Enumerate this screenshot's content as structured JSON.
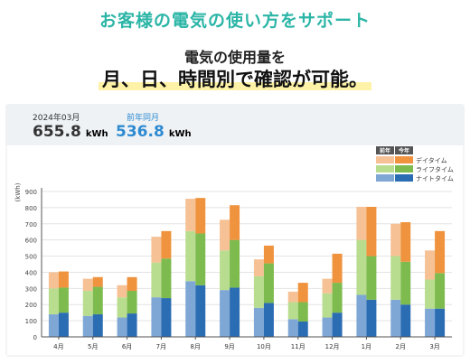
{
  "header": {
    "headline": "お客様の電気の使い方をサポート",
    "subline": "電気の使用量を",
    "mainline": "月、日、時間別で確認が可能。"
  },
  "summary": {
    "current": {
      "label": "2024年03月",
      "value": "655.8",
      "unit": "kWh"
    },
    "previous": {
      "label": "前年同月",
      "value": "536.8",
      "unit": "kWh"
    }
  },
  "chart_data": {
    "type": "bar",
    "ylabel": "(kWh)",
    "ylim": [
      0,
      900
    ],
    "yticks": [
      "0",
      "100",
      "200",
      "300",
      "400",
      "500",
      "600",
      "700",
      "800",
      "900"
    ],
    "categories": [
      "4月",
      "5月",
      "6月",
      "7月",
      "8月",
      "9月",
      "10月",
      "11月",
      "12月",
      "1月",
      "2月",
      "3月"
    ],
    "legend": {
      "headers": [
        "前年",
        "今年"
      ],
      "entries": [
        "デイタイム",
        "ライフタイム",
        "ナイトタイム"
      ]
    },
    "groups": [
      {
        "name": "前年",
        "colors": {
          "night": "#7fa7d6",
          "life": "#b9dd8e",
          "day": "#f6c195"
        }
      },
      {
        "name": "今年",
        "colors": {
          "night": "#2b6db3",
          "life": "#7dbb4e",
          "day": "#f0933e"
        }
      }
    ],
    "series": [
      {
        "name": "ナイトタイム",
        "group": "前年",
        "values": [
          140,
          130,
          120,
          245,
          345,
          290,
          180,
          110,
          120,
          260,
          230,
          175
        ]
      },
      {
        "name": "ライフタイム",
        "group": "前年",
        "values": [
          160,
          155,
          125,
          215,
          310,
          245,
          195,
          105,
          150,
          340,
          270,
          180
        ]
      },
      {
        "name": "デイタイム",
        "group": "前年",
        "values": [
          100,
          75,
          75,
          160,
          200,
          190,
          105,
          65,
          90,
          205,
          200,
          180
        ]
      },
      {
        "name": "ナイトタイム",
        "group": "今年",
        "values": [
          150,
          140,
          145,
          240,
          320,
          305,
          210,
          95,
          150,
          230,
          200,
          175
        ]
      },
      {
        "name": "ライフタイム",
        "group": "今年",
        "values": [
          155,
          170,
          140,
          245,
          320,
          295,
          245,
          120,
          185,
          270,
          265,
          220
        ]
      },
      {
        "name": "デイタイム",
        "group": "今年",
        "values": [
          100,
          60,
          85,
          170,
          220,
          215,
          110,
          120,
          180,
          305,
          245,
          260
        ]
      }
    ]
  }
}
